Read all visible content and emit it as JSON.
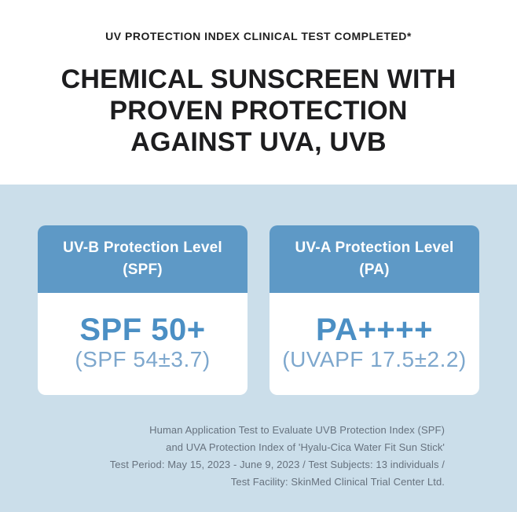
{
  "hero": {
    "eyebrow": "UV PROTECTION INDEX CLINICAL TEST COMPLETED*",
    "headline_lines": [
      "CHEMICAL SUNSCREEN WITH",
      "PROVEN PROTECTION",
      "AGAINST UVA, UVB"
    ]
  },
  "cards": [
    {
      "header_line1": "UV-B Protection Level",
      "header_line2": "(SPF)",
      "value": "SPF 50+",
      "detail": "(SPF 54±3.7)"
    },
    {
      "header_line1": "UV-A Protection Level",
      "header_line2": "(PA)",
      "value": "PA++++",
      "detail": "(UVAPF 17.5±2.2)"
    }
  ],
  "footnote": {
    "lines": [
      "Human Application Test to Evaluate UVB Protection Index (SPF)",
      "and UVA Protection Index of 'Hyalu-Cica Water Fit Sun Stick'",
      "Test Period: May 15, 2023 - June 9, 2023 / Test Subjects: 13 individuals /",
      "Test Facility: SkinMed Clinical Trial Center Ltd."
    ]
  },
  "colors": {
    "accent_blue": "#5e99c6",
    "value_blue": "#4b8fc4",
    "detail_blue": "#7da7cd",
    "section_bg": "#cbdeea",
    "footnote_gray": "#67727e",
    "heading_dark": "#1d1d1f"
  }
}
